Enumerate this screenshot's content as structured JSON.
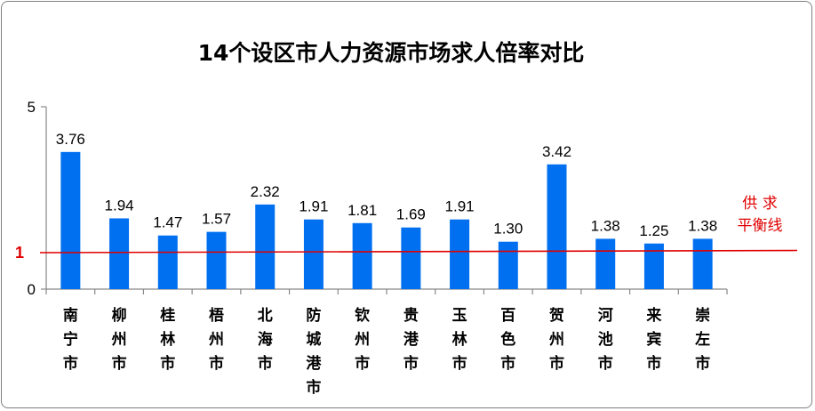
{
  "chart_data": {
    "type": "bar",
    "title": "14个设区市人力资源市场求人倍率对比",
    "categories": [
      "南宁市",
      "柳州市",
      "桂林市",
      "梧州市",
      "北海市",
      "防城港市",
      "钦州市",
      "贵港市",
      "玉林市",
      "百色市",
      "贺州市",
      "河池市",
      "来宾市",
      "崇左市"
    ],
    "values": [
      3.76,
      1.94,
      1.47,
      1.57,
      2.32,
      1.91,
      1.81,
      1.69,
      1.91,
      1.3,
      3.42,
      1.38,
      1.25,
      1.38
    ],
    "data_labels": [
      "3.76",
      "1.94",
      "1.47",
      "1.57",
      "2.32",
      "1.91",
      "1.81",
      "1.69",
      "1.91",
      "1.30",
      "3.42",
      "1.38",
      "1.25",
      "1.38"
    ],
    "ylim": [
      0,
      5
    ],
    "yticks": [
      "0",
      "5"
    ],
    "reference_line": {
      "value": 1,
      "label": "1",
      "annotation_lines": [
        "供 求",
        "平衡线"
      ],
      "color": "#e00000"
    },
    "bar_color": "#0070f0",
    "grid": false,
    "xlabel": "",
    "ylabel": ""
  }
}
